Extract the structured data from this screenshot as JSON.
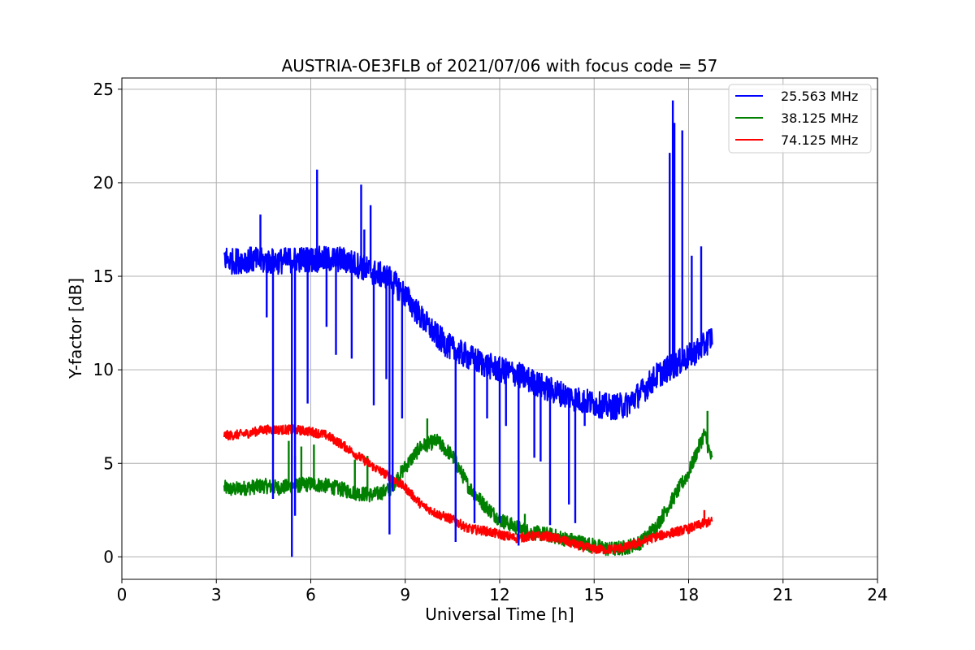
{
  "chart_data": {
    "type": "line",
    "title": "AUSTRIA-OE3FLB of 2021/07/06 with focus code = 57",
    "xlabel": "Universal Time [h]",
    "ylabel": "Y-factor [dB]",
    "xlim": [
      0,
      24
    ],
    "ylim": [
      -1.2,
      25.6
    ],
    "xticks": [
      0,
      3,
      6,
      9,
      12,
      15,
      18,
      21,
      24
    ],
    "yticks": [
      0,
      5,
      10,
      15,
      20,
      25
    ],
    "grid": true,
    "legend_position": "top-right",
    "series": [
      {
        "name": "25.563 MHz",
        "color": "#0000ff",
        "x": [
          3.25,
          3.5,
          4.0,
          4.5,
          5.0,
          5.5,
          6.0,
          6.5,
          7.0,
          7.5,
          8.0,
          8.5,
          9.0,
          9.5,
          10.0,
          10.5,
          11.0,
          11.5,
          12.0,
          12.5,
          13.0,
          13.5,
          14.0,
          14.5,
          15.0,
          15.5,
          16.0,
          16.5,
          17.0,
          17.5,
          18.0,
          18.5,
          18.75
        ],
        "y": [
          16.0,
          15.8,
          15.9,
          15.8,
          15.8,
          15.9,
          15.9,
          15.9,
          15.9,
          15.6,
          15.2,
          14.9,
          14.0,
          12.8,
          11.8,
          11.1,
          10.7,
          10.3,
          10.0,
          9.8,
          9.4,
          9.0,
          8.7,
          8.4,
          8.2,
          8.0,
          8.1,
          8.8,
          9.7,
          10.2,
          10.7,
          11.3,
          11.8
        ],
        "noise": 0.7,
        "spikes": [
          [
            4.4,
            18.3
          ],
          [
            4.6,
            12.8
          ],
          [
            4.8,
            3.1
          ],
          [
            5.4,
            0.0
          ],
          [
            5.5,
            2.2
          ],
          [
            5.9,
            8.2
          ],
          [
            6.2,
            20.7
          ],
          [
            6.5,
            12.3
          ],
          [
            6.8,
            10.8
          ],
          [
            7.3,
            10.6
          ],
          [
            7.6,
            19.9
          ],
          [
            7.7,
            17.5
          ],
          [
            7.9,
            18.8
          ],
          [
            8.0,
            8.1
          ],
          [
            8.4,
            9.5
          ],
          [
            8.5,
            1.2
          ],
          [
            8.6,
            3.5
          ],
          [
            8.9,
            7.4
          ],
          [
            10.6,
            0.8
          ],
          [
            10.8,
            10.3
          ],
          [
            11.2,
            1.8
          ],
          [
            11.6,
            7.4
          ],
          [
            12.0,
            1.8
          ],
          [
            12.2,
            7.0
          ],
          [
            12.6,
            0.6
          ],
          [
            13.1,
            5.3
          ],
          [
            13.3,
            5.1
          ],
          [
            13.6,
            1.7
          ],
          [
            14.2,
            2.8
          ],
          [
            14.4,
            1.8
          ],
          [
            14.7,
            7.0
          ],
          [
            17.4,
            21.6
          ],
          [
            17.5,
            24.4
          ],
          [
            17.55,
            23.2
          ],
          [
            17.8,
            22.8
          ],
          [
            18.1,
            16.1
          ],
          [
            18.4,
            16.6
          ]
        ]
      },
      {
        "name": "38.125 MHz",
        "color": "#008000",
        "x": [
          3.25,
          3.5,
          4.0,
          4.5,
          5.0,
          5.5,
          6.0,
          6.5,
          7.0,
          7.5,
          8.0,
          8.5,
          9.0,
          9.5,
          10.0,
          10.5,
          11.0,
          11.5,
          12.0,
          12.5,
          13.0,
          13.5,
          14.0,
          14.5,
          15.0,
          15.5,
          16.0,
          16.5,
          17.0,
          17.5,
          18.0,
          18.5,
          18.75
        ],
        "y": [
          3.7,
          3.6,
          3.7,
          3.8,
          3.7,
          3.8,
          3.9,
          3.8,
          3.6,
          3.4,
          3.3,
          3.6,
          4.8,
          5.9,
          6.2,
          5.4,
          3.8,
          2.8,
          2.0,
          1.6,
          1.3,
          1.2,
          1.0,
          0.8,
          0.6,
          0.4,
          0.5,
          0.8,
          1.7,
          3.1,
          4.5,
          6.6,
          5.1
        ],
        "noise": 0.4,
        "spikes": [
          [
            5.3,
            6.2
          ],
          [
            5.5,
            5.4
          ],
          [
            5.7,
            5.9
          ],
          [
            6.1,
            6.0
          ],
          [
            7.4,
            5.2
          ],
          [
            7.8,
            5.4
          ],
          [
            9.7,
            7.4
          ],
          [
            10.4,
            5.5
          ],
          [
            12.8,
            2.3
          ],
          [
            18.6,
            7.8
          ]
        ]
      },
      {
        "name": "74.125 MHz",
        "color": "#ff0000",
        "x": [
          3.25,
          3.5,
          4.0,
          4.5,
          5.0,
          5.5,
          6.0,
          6.5,
          7.0,
          7.5,
          8.0,
          8.5,
          9.0,
          9.5,
          10.0,
          10.5,
          11.0,
          11.5,
          12.0,
          12.5,
          13.0,
          13.5,
          14.0,
          14.5,
          15.0,
          15.5,
          16.0,
          16.5,
          17.0,
          17.5,
          18.0,
          18.5,
          18.75
        ],
        "y": [
          6.5,
          6.5,
          6.6,
          6.8,
          6.8,
          6.8,
          6.7,
          6.5,
          6.0,
          5.4,
          4.8,
          4.3,
          3.7,
          2.8,
          2.3,
          2.0,
          1.5,
          1.4,
          1.2,
          1.0,
          1.1,
          1.1,
          0.9,
          0.6,
          0.4,
          0.4,
          0.5,
          0.8,
          1.1,
          1.3,
          1.5,
          1.8,
          1.9
        ],
        "noise": 0.25,
        "spikes": [
          [
            18.5,
            2.5
          ]
        ]
      }
    ]
  }
}
